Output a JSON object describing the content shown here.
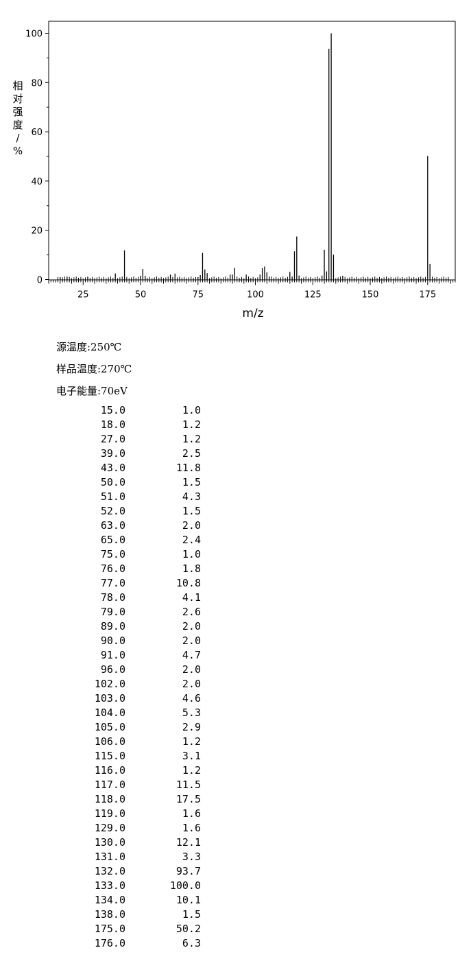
{
  "chart_data": {
    "type": "bar",
    "xlabel": "m/z",
    "ylabel": "相对强度/%",
    "xlim": [
      10,
      187
    ],
    "ylim": [
      0,
      100
    ],
    "x_ticks": [
      25,
      50,
      75,
      100,
      125,
      150,
      175
    ],
    "y_ticks": [
      0,
      20,
      40,
      60,
      80,
      100
    ],
    "grid": false,
    "peaks": [
      {
        "mz": 15.0,
        "abundance": 1.0
      },
      {
        "mz": 18.0,
        "abundance": 1.2
      },
      {
        "mz": 27.0,
        "abundance": 1.2
      },
      {
        "mz": 39.0,
        "abundance": 2.5
      },
      {
        "mz": 43.0,
        "abundance": 11.8
      },
      {
        "mz": 50.0,
        "abundance": 1.5
      },
      {
        "mz": 51.0,
        "abundance": 4.3
      },
      {
        "mz": 52.0,
        "abundance": 1.5
      },
      {
        "mz": 63.0,
        "abundance": 2.0
      },
      {
        "mz": 65.0,
        "abundance": 2.4
      },
      {
        "mz": 75.0,
        "abundance": 1.0
      },
      {
        "mz": 76.0,
        "abundance": 1.8
      },
      {
        "mz": 77.0,
        "abundance": 10.8
      },
      {
        "mz": 78.0,
        "abundance": 4.1
      },
      {
        "mz": 79.0,
        "abundance": 2.6
      },
      {
        "mz": 89.0,
        "abundance": 2.0
      },
      {
        "mz": 90.0,
        "abundance": 2.0
      },
      {
        "mz": 91.0,
        "abundance": 4.7
      },
      {
        "mz": 96.0,
        "abundance": 2.0
      },
      {
        "mz": 102.0,
        "abundance": 2.0
      },
      {
        "mz": 103.0,
        "abundance": 4.6
      },
      {
        "mz": 104.0,
        "abundance": 5.3
      },
      {
        "mz": 105.0,
        "abundance": 2.9
      },
      {
        "mz": 106.0,
        "abundance": 1.2
      },
      {
        "mz": 115.0,
        "abundance": 3.1
      },
      {
        "mz": 116.0,
        "abundance": 1.2
      },
      {
        "mz": 117.0,
        "abundance": 11.5
      },
      {
        "mz": 118.0,
        "abundance": 17.5
      },
      {
        "mz": 119.0,
        "abundance": 1.6
      },
      {
        "mz": 129.0,
        "abundance": 1.6
      },
      {
        "mz": 130.0,
        "abundance": 12.1
      },
      {
        "mz": 131.0,
        "abundance": 3.3
      },
      {
        "mz": 132.0,
        "abundance": 93.7
      },
      {
        "mz": 133.0,
        "abundance": 100.0
      },
      {
        "mz": 134.0,
        "abundance": 10.1
      },
      {
        "mz": 138.0,
        "abundance": 1.5
      },
      {
        "mz": 175.0,
        "abundance": 50.2
      },
      {
        "mz": 176.0,
        "abundance": 6.3
      }
    ]
  },
  "conditions": {
    "source_temp": "源温度:250℃",
    "sample_temp": "样品温度:270℃",
    "electron_energy": "电子能量:70eV"
  },
  "table_rows": [
    {
      "mz": "15.0",
      "abundance": "1.0"
    },
    {
      "mz": "18.0",
      "abundance": "1.2"
    },
    {
      "mz": "27.0",
      "abundance": "1.2"
    },
    {
      "mz": "39.0",
      "abundance": "2.5"
    },
    {
      "mz": "43.0",
      "abundance": "11.8"
    },
    {
      "mz": "50.0",
      "abundance": "1.5"
    },
    {
      "mz": "51.0",
      "abundance": "4.3"
    },
    {
      "mz": "52.0",
      "abundance": "1.5"
    },
    {
      "mz": "63.0",
      "abundance": "2.0"
    },
    {
      "mz": "65.0",
      "abundance": "2.4"
    },
    {
      "mz": "75.0",
      "abundance": "1.0"
    },
    {
      "mz": "76.0",
      "abundance": "1.8"
    },
    {
      "mz": "77.0",
      "abundance": "10.8"
    },
    {
      "mz": "78.0",
      "abundance": "4.1"
    },
    {
      "mz": "79.0",
      "abundance": "2.6"
    },
    {
      "mz": "89.0",
      "abundance": "2.0"
    },
    {
      "mz": "90.0",
      "abundance": "2.0"
    },
    {
      "mz": "91.0",
      "abundance": "4.7"
    },
    {
      "mz": "96.0",
      "abundance": "2.0"
    },
    {
      "mz": "102.0",
      "abundance": "2.0"
    },
    {
      "mz": "103.0",
      "abundance": "4.6"
    },
    {
      "mz": "104.0",
      "abundance": "5.3"
    },
    {
      "mz": "105.0",
      "abundance": "2.9"
    },
    {
      "mz": "106.0",
      "abundance": "1.2"
    },
    {
      "mz": "115.0",
      "abundance": "3.1"
    },
    {
      "mz": "116.0",
      "abundance": "1.2"
    },
    {
      "mz": "117.0",
      "abundance": "11.5"
    },
    {
      "mz": "118.0",
      "abundance": "17.5"
    },
    {
      "mz": "119.0",
      "abundance": "1.6"
    },
    {
      "mz": "129.0",
      "abundance": "1.6"
    },
    {
      "mz": "130.0",
      "abundance": "12.1"
    },
    {
      "mz": "131.0",
      "abundance": "3.3"
    },
    {
      "mz": "132.0",
      "abundance": "93.7"
    },
    {
      "mz": "133.0",
      "abundance": "100.0"
    },
    {
      "mz": "134.0",
      "abundance": "10.1"
    },
    {
      "mz": "138.0",
      "abundance": "1.5"
    },
    {
      "mz": "175.0",
      "abundance": "50.2"
    },
    {
      "mz": "176.0",
      "abundance": "6.3"
    }
  ]
}
